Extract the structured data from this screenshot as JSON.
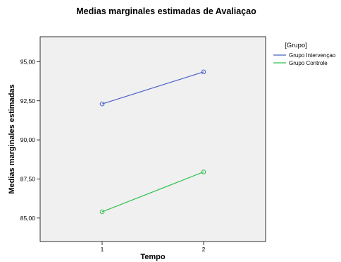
{
  "chart_data": {
    "type": "line",
    "title": "Medias marginales estimadas de Avaliaçao",
    "xlabel": "Tempo",
    "ylabel": "Medias marginales estimadas",
    "categories": [
      "1",
      "2"
    ],
    "y_ticks": [
      "85,00",
      "87,50",
      "90,00",
      "92,50",
      "95,00"
    ],
    "ylim": [
      83.5,
      96.6
    ],
    "legend_title": "[Grupo]",
    "legend_position": "right",
    "plot_background": "#f0f0f0",
    "series": [
      {
        "name": "Grupo Intervençao",
        "color": "#4a62c8",
        "values": [
          92.3,
          94.35
        ]
      },
      {
        "name": "Grupo Controle",
        "color": "#32c24e",
        "values": [
          85.4,
          87.95
        ]
      }
    ]
  }
}
